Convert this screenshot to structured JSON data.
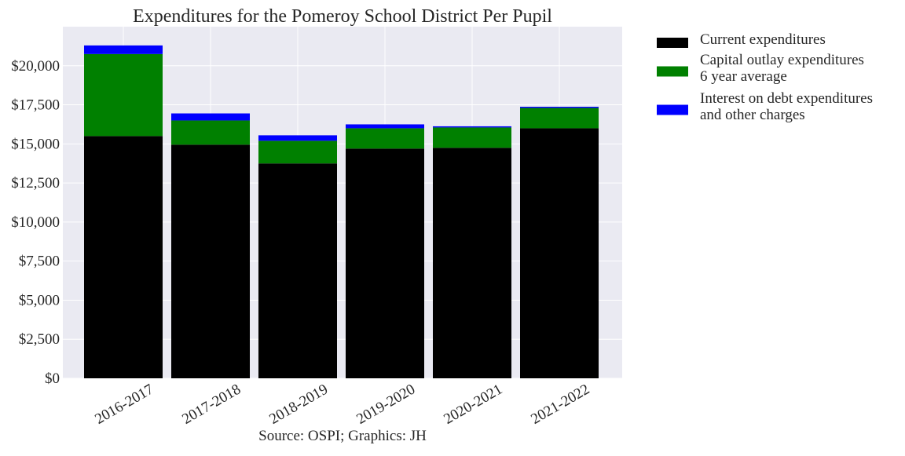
{
  "chart_data": {
    "type": "bar",
    "stacked": true,
    "title": "Expenditures for the Pomeroy School District Per Pupil",
    "caption": "Source: OSPI; Graphics: JH",
    "xlabel": "",
    "ylabel": "",
    "categories": [
      "2016-2017",
      "2017-2018",
      "2018-2019",
      "2019-2020",
      "2020-2021",
      "2021-2022"
    ],
    "series": [
      {
        "name": "Current expenditures",
        "color": "#000000",
        "values": [
          15500,
          14950,
          13750,
          14700,
          14750,
          16000
        ]
      },
      {
        "name": "Capital outlay expenditures\n6 year average",
        "color": "#008000",
        "values": [
          5250,
          1550,
          1450,
          1300,
          1300,
          1300
        ]
      },
      {
        "name": "Interest on debt expenditures\nand other charges",
        "color": "#0000ff",
        "values": [
          550,
          450,
          350,
          250,
          75,
          75
        ]
      }
    ],
    "ylim": [
      0,
      22500
    ],
    "yticks": [
      0,
      2500,
      5000,
      7500,
      10000,
      12500,
      15000,
      17500,
      20000
    ],
    "ytick_labels": [
      "$0",
      "$2,500",
      "$5,000",
      "$7,500",
      "$10,000",
      "$12,500",
      "$15,000",
      "$17,500",
      "$20,000"
    ],
    "grid": true,
    "legend_position": "outside-right-top"
  }
}
